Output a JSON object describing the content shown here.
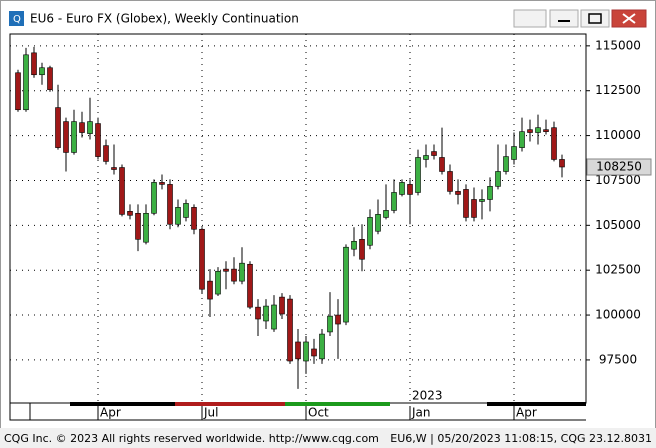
{
  "window": {
    "title": "EU6 - Euro FX (Globex), Weekly Continuation"
  },
  "chart_data": {
    "type": "candlestick",
    "categories": [
      null,
      null,
      null,
      null,
      null,
      null,
      null,
      null,
      null,
      null,
      "Apr",
      null,
      null,
      null,
      null,
      null,
      null,
      null,
      null,
      null,
      null,
      null,
      null,
      "Jul",
      null,
      null,
      null,
      null,
      null,
      null,
      null,
      null,
      null,
      null,
      null,
      null,
      "Oct",
      null,
      null,
      null,
      null,
      null,
      null,
      null,
      null,
      null,
      null,
      null,
      null,
      "Jan",
      null,
      null,
      null,
      null,
      null,
      null,
      null,
      null,
      null,
      null,
      null,
      null,
      "Apr",
      null,
      null,
      null,
      null,
      null,
      null
    ],
    "year_label": "2023",
    "open": [
      113500,
      111440,
      114610,
      113390,
      113780,
      111560,
      110780,
      109060,
      110720,
      110110,
      110670,
      109440,
      108220,
      108220,
      105780,
      105670,
      104060,
      105670,
      107390,
      107280,
      105060,
      105440,
      106000,
      104780,
      101890,
      101170,
      102560,
      102560,
      101890,
      102830,
      100440,
      99670,
      99220,
      101000,
      100890,
      98500,
      97440,
      98110,
      97560,
      99060,
      100000,
      99610,
      103670,
      104220,
      103890,
      104670,
      105440,
      105830,
      106720,
      107280,
      106830,
      108670,
      109110,
      108780,
      108000,
      106890,
      107000,
      106440,
      106330,
      106440,
      107170,
      108000,
      108670,
      109330,
      110330,
      110170,
      110330,
      110440,
      108670
    ],
    "high": [
      113670,
      114890,
      114940,
      114060,
      113890,
      112830,
      111000,
      111440,
      111330,
      112110,
      111000,
      109780,
      109500,
      108390,
      106170,
      106170,
      106170,
      107560,
      107830,
      107560,
      106440,
      106440,
      106170,
      104890,
      102560,
      102670,
      103000,
      103220,
      103780,
      103000,
      100890,
      100890,
      101110,
      101220,
      101110,
      99220,
      98830,
      98670,
      99220,
      101280,
      100890,
      103940,
      104890,
      105060,
      105890,
      106440,
      107280,
      107560,
      107560,
      107560,
      109220,
      109500,
      109500,
      110440,
      108390,
      107560,
      107280,
      107110,
      107000,
      107670,
      109500,
      109500,
      110170,
      111000,
      110890,
      111170,
      110890,
      110780,
      108940
    ],
    "low": [
      111330,
      111330,
      113220,
      112830,
      112440,
      109220,
      108000,
      108940,
      109890,
      109780,
      108670,
      108390,
      107830,
      105500,
      105330,
      103560,
      103940,
      105560,
      107000,
      104780,
      104890,
      105220,
      104500,
      101170,
      99890,
      101060,
      101440,
      101720,
      101720,
      100330,
      98830,
      99220,
      99060,
      99780,
      97280,
      95890,
      96720,
      97280,
      97280,
      98830,
      97560,
      99440,
      103280,
      102440,
      103670,
      104500,
      105330,
      105670,
      106610,
      105060,
      106670,
      108220,
      108670,
      107830,
      106720,
      106170,
      105220,
      105220,
      105330,
      105780,
      107000,
      107830,
      108390,
      109110,
      109670,
      109500,
      110060,
      108560,
      107670
    ],
    "close": [
      111440,
      114500,
      113390,
      113780,
      112560,
      109330,
      109060,
      110780,
      110170,
      110780,
      108830,
      108560,
      108110,
      105610,
      105560,
      104220,
      105670,
      107390,
      107280,
      105060,
      106000,
      106220,
      104780,
      101440,
      100890,
      102440,
      102440,
      101890,
      102890,
      100440,
      99780,
      100500,
      100560,
      100060,
      97440,
      97560,
      98500,
      97720,
      98940,
      99940,
      99500,
      103780,
      104110,
      103110,
      105440,
      105610,
      105830,
      106830,
      107390,
      106720,
      108780,
      108890,
      108890,
      108000,
      106890,
      106720,
      105440,
      105440,
      106440,
      107170,
      108000,
      108830,
      109390,
      110220,
      110170,
      110440,
      110220,
      108670,
      108250
    ],
    "up_color": "#3cb043",
    "down_color": "#a01818",
    "ylim": [
      95100,
      115660
    ],
    "yticks": [
      97500,
      100000,
      102500,
      105000,
      107500,
      110000,
      112500,
      115000
    ],
    "grid": true,
    "last_price": 108250
  },
  "status_bar": {
    "left": "CQG Inc. © 2023 All rights reserved worldwide. http://www.cqg.com",
    "right": "EU6,W | 05/20/2023 11:08:15, CQG 23.12.8031"
  }
}
